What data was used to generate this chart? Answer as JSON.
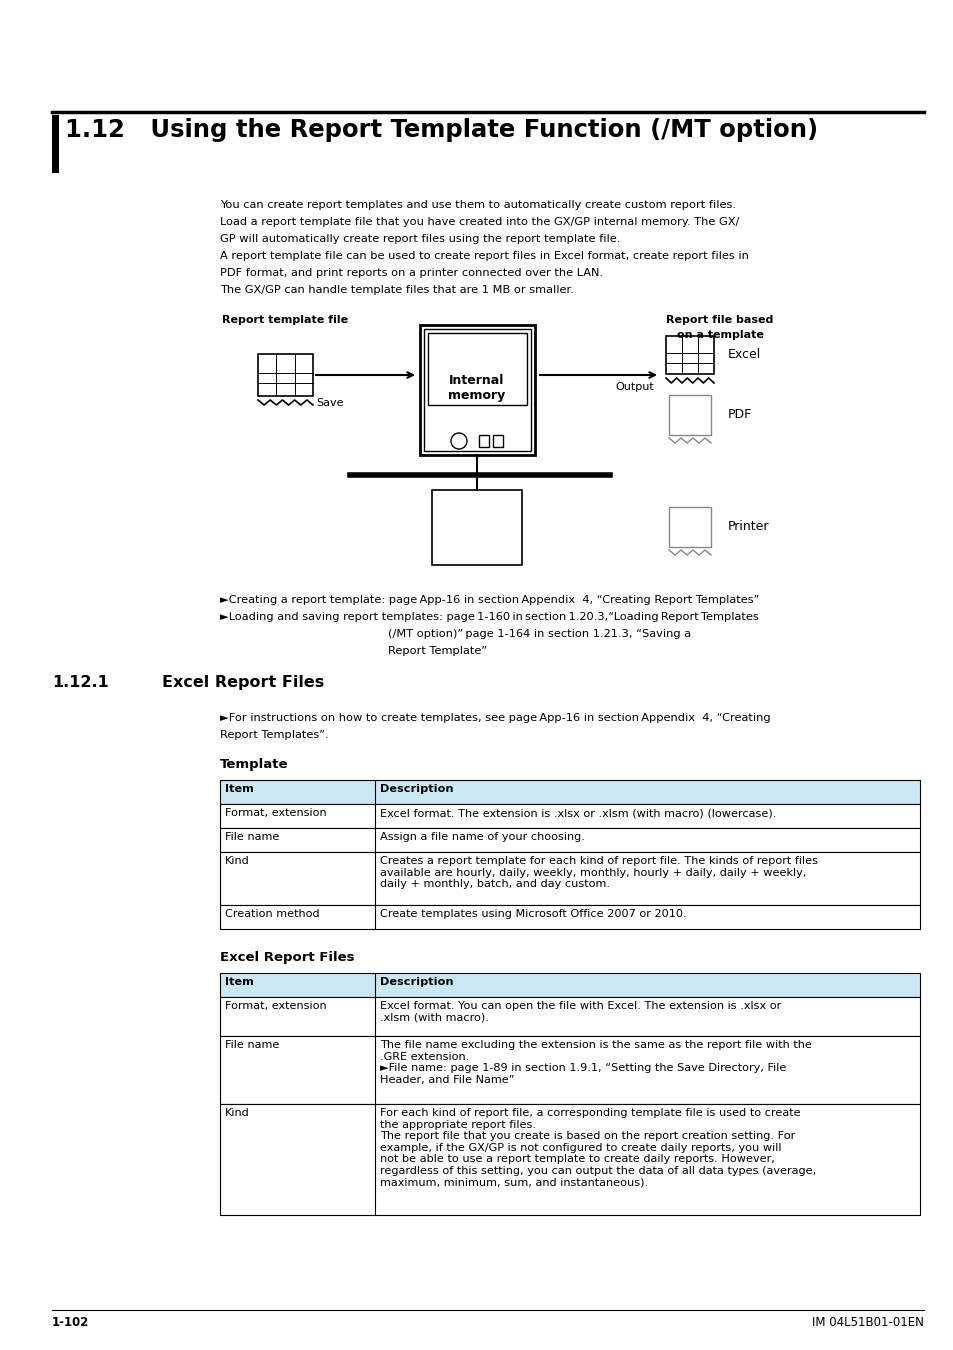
{
  "page_bg": "#ffffff",
  "title_text": "1.12   Using the Report Template Function (/MT option)",
  "body_text_1": "You can create report templates and use them to automatically create custom report files.\nLoad a report template file that you have created into the GX/GP internal memory. The GX/\nGP will automatically create report files using the report template file.\nA report template file can be used to create report files in Excel format, create report files in\nPDF format, and print reports on a printer connected over the LAN.\nThe GX/GP can handle template files that are 1 MB or smaller.",
  "bullet1": "►Creating a report template: page App-16 in section Appendix  4, “Creating Report Templates”",
  "bullet2a": "►Loading and saving report templates: page 1-160 in section 1.20.3,“Loading Report Templates",
  "bullet2b": "(/MT option)” page 1-164 in section 1.21.3, “Saving a",
  "bullet2c": "Report Template”",
  "subsection_num": "1.12.1",
  "subsection_title": "Excel Report Files",
  "subsection_intro1": "►For instructions on how to create templates, see page App-16 in section Appendix  4, “Creating",
  "subsection_intro2": "Report Templates”.",
  "template_table_title": "Template",
  "template_table_header": [
    "Item",
    "Description"
  ],
  "template_table_rows": [
    [
      "Format, extension",
      "Excel format. The extension is .xlsx or .xlsm (with macro) (lowercase)."
    ],
    [
      "File name",
      "Assign a file name of your choosing."
    ],
    [
      "Kind",
      "Creates a report template for each kind of report file. The kinds of report files\navailable are hourly, daily, weekly, monthly, hourly + daily, daily + weekly,\ndaily + monthly, batch, and day custom."
    ],
    [
      "Creation method",
      "Create templates using Microsoft Office 2007 or 2010."
    ]
  ],
  "excel_table_title": "Excel Report Files",
  "excel_table_header": [
    "Item",
    "Description"
  ],
  "excel_table_rows": [
    [
      "Format, extension",
      "Excel format. You can open the file with Excel. The extension is .xlsx or\n.xlsm (with macro)."
    ],
    [
      "File name",
      "The file name excluding the extension is the same as the report file with the\n.GRE extension.\n►File name: page 1-89 in section 1.9.1, “Setting the Save Directory, File\nHeader, and File Name”"
    ],
    [
      "Kind",
      "For each kind of report file, a corresponding template file is used to create\nthe appropriate report files.\nThe report file that you create is based on the report creation setting. For\nexample, if the GX/GP is not configured to create daily reports, you will\nnot be able to use a report template to create daily reports. However,\nregardless of this setting, you can output the data of all data types (average,\nmaximum, minimum, sum, and instantaneous)."
    ]
  ],
  "footer_left": "1-102",
  "footer_right": "IM 04L51B01-01EN",
  "table_header_bg": "#cce8f4",
  "table_border_color": "#000000"
}
